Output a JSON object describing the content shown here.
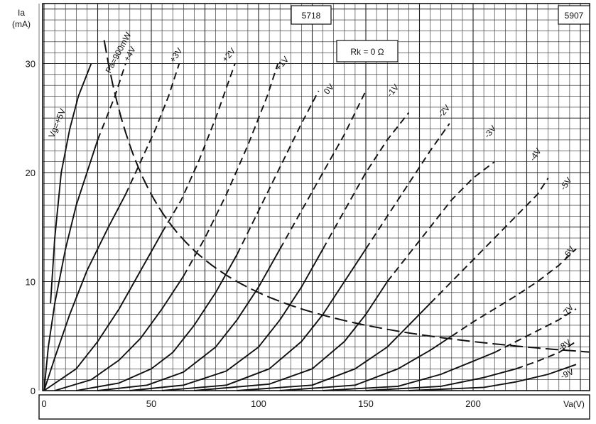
{
  "chart_data": {
    "type": "line",
    "title": "",
    "tube_labels": [
      "5718",
      "5907"
    ],
    "condition": "Rk = 0 Ω",
    "ylabel": {
      "symbol": "Ia",
      "unit": "(mA)"
    },
    "xlabel": "Va(V)",
    "xlim": [
      0,
      255
    ],
    "ylim": [
      0,
      33
    ],
    "x_ticks": [
      "0",
      "50",
      "100",
      "150",
      "200"
    ],
    "y_ticks": [
      "0",
      "10",
      "20",
      "30"
    ],
    "grid": true,
    "power_limit_label": "Pa=900mW",
    "power_limit_mW": 900,
    "series": [
      {
        "name": "Vg=+5V",
        "label": "Vg=+5V",
        "points": [
          [
            3,
            8
          ],
          [
            5,
            14
          ],
          [
            8,
            20
          ],
          [
            12,
            24
          ],
          [
            16,
            27
          ],
          [
            22,
            30
          ]
        ],
        "dashed_from": 99
      },
      {
        "name": "+4V",
        "label": "+4V",
        "points": [
          [
            0,
            0
          ],
          [
            2,
            4
          ],
          [
            5,
            8
          ],
          [
            10,
            13
          ],
          [
            15,
            17
          ],
          [
            20,
            20
          ],
          [
            25,
            23
          ],
          [
            29,
            25
          ],
          [
            33,
            27
          ],
          [
            38,
            30
          ]
        ],
        "dashed_from": 28
      },
      {
        "name": "+3V",
        "label": "+3V",
        "points": [
          [
            0,
            0
          ],
          [
            5,
            3
          ],
          [
            12,
            7
          ],
          [
            20,
            11
          ],
          [
            30,
            15
          ],
          [
            38,
            18
          ],
          [
            45,
            21
          ],
          [
            52,
            24
          ],
          [
            58,
            27
          ],
          [
            63,
            30
          ]
        ],
        "dashed_from": 38
      },
      {
        "name": "+2V",
        "label": "+2V",
        "points": [
          [
            0,
            0
          ],
          [
            15,
            2
          ],
          [
            25,
            4.5
          ],
          [
            35,
            7.5
          ],
          [
            45,
            11
          ],
          [
            55,
            14.5
          ],
          [
            64,
            17.5
          ],
          [
            72,
            21
          ],
          [
            80,
            25
          ],
          [
            89,
            30
          ]
        ],
        "dashed_from": 58
      },
      {
        "name": "+1V",
        "label": "+1V",
        "points": [
          [
            5,
            0
          ],
          [
            22,
            1
          ],
          [
            35,
            2.8
          ],
          [
            45,
            4.8
          ],
          [
            55,
            7.5
          ],
          [
            65,
            10.5
          ],
          [
            75,
            14
          ],
          [
            85,
            18
          ],
          [
            95,
            22.5
          ],
          [
            104,
            27
          ],
          [
            109,
            30
          ]
        ],
        "dashed_from": 74
      },
      {
        "name": "0V",
        "label": "0V",
        "points": [
          [
            15,
            0
          ],
          [
            35,
            0.7
          ],
          [
            50,
            2
          ],
          [
            60,
            3.5
          ],
          [
            70,
            6
          ],
          [
            80,
            9
          ],
          [
            90,
            12.5
          ],
          [
            100,
            16.5
          ],
          [
            110,
            20.5
          ],
          [
            120,
            24.5
          ],
          [
            128,
            27.5
          ]
        ],
        "dashed_from": 96
      },
      {
        "name": "-1V",
        "label": "-1V",
        "points": [
          [
            25,
            0
          ],
          [
            48,
            0.5
          ],
          [
            65,
            1.7
          ],
          [
            80,
            4
          ],
          [
            90,
            6.5
          ],
          [
            100,
            9.5
          ],
          [
            110,
            13
          ],
          [
            120,
            16.5
          ],
          [
            130,
            20
          ],
          [
            140,
            23.5
          ],
          [
            150,
            27.5
          ]
        ],
        "dashed_from": 114
      },
      {
        "name": "-2V",
        "label": "-2V",
        "points": [
          [
            40,
            0
          ],
          [
            65,
            0.5
          ],
          [
            85,
            1.8
          ],
          [
            100,
            4
          ],
          [
            110,
            6.5
          ],
          [
            120,
            9.5
          ],
          [
            130,
            13
          ],
          [
            140,
            16.5
          ],
          [
            150,
            20
          ],
          [
            160,
            23
          ],
          [
            170,
            25.5
          ]
        ],
        "dashed_from": 133
      },
      {
        "name": "-3V",
        "label": "-3V",
        "points": [
          [
            55,
            0
          ],
          [
            85,
            0.5
          ],
          [
            105,
            2
          ],
          [
            120,
            4.5
          ],
          [
            130,
            7
          ],
          [
            140,
            10
          ],
          [
            150,
            13
          ],
          [
            160,
            16
          ],
          [
            170,
            19
          ],
          [
            180,
            22
          ],
          [
            189,
            24.5
          ]
        ],
        "dashed_from": 150
      },
      {
        "name": "-4V",
        "label": "-4V",
        "points": [
          [
            70,
            0
          ],
          [
            105,
            0.6
          ],
          [
            125,
            2
          ],
          [
            140,
            4.5
          ],
          [
            150,
            7
          ],
          [
            160,
            10
          ],
          [
            170,
            12.5
          ],
          [
            180,
            15
          ],
          [
            190,
            17.5
          ],
          [
            200,
            19.5
          ],
          [
            210,
            21
          ]
        ],
        "dashed_from": 165
      },
      {
        "name": "-5V",
        "label": "-5V",
        "points": [
          [
            90,
            0
          ],
          [
            125,
            0.5
          ],
          [
            145,
            2
          ],
          [
            160,
            4
          ],
          [
            170,
            6
          ],
          [
            180,
            8
          ],
          [
            190,
            10
          ],
          [
            200,
            12
          ],
          [
            210,
            14
          ],
          [
            220,
            16
          ],
          [
            230,
            18
          ],
          [
            235,
            19.5
          ]
        ],
        "dashed_from": 182
      },
      {
        "name": "-6V",
        "label": "-6V",
        "points": [
          [
            110,
            0
          ],
          [
            145,
            0.5
          ],
          [
            165,
            2
          ],
          [
            180,
            3.7
          ],
          [
            190,
            5
          ],
          [
            200,
            6.3
          ],
          [
            210,
            7.5
          ],
          [
            220,
            8.7
          ],
          [
            230,
            10
          ],
          [
            240,
            11.5
          ],
          [
            248,
            13
          ]
        ],
        "dashed_from": 198
      },
      {
        "name": "-7V",
        "label": "-7V",
        "points": [
          [
            130,
            0
          ],
          [
            165,
            0.4
          ],
          [
            185,
            1.5
          ],
          [
            200,
            2.7
          ],
          [
            210,
            3.5
          ],
          [
            220,
            4.5
          ],
          [
            230,
            5.5
          ],
          [
            240,
            6.5
          ],
          [
            248,
            7.5
          ]
        ],
        "dashed_from": 210
      },
      {
        "name": "-8V",
        "label": "-8V",
        "points": [
          [
            150,
            0
          ],
          [
            185,
            0.4
          ],
          [
            205,
            1.2
          ],
          [
            220,
            2
          ],
          [
            230,
            2.7
          ],
          [
            240,
            3.5
          ],
          [
            248,
            4.5
          ]
        ],
        "dashed_from": 222
      },
      {
        "name": "-9V",
        "label": "-9V",
        "points": [
          [
            170,
            0
          ],
          [
            205,
            0.3
          ],
          [
            220,
            0.8
          ],
          [
            235,
            1.5
          ],
          [
            248,
            2.4
          ]
        ],
        "dashed_from": 999
      }
    ]
  }
}
